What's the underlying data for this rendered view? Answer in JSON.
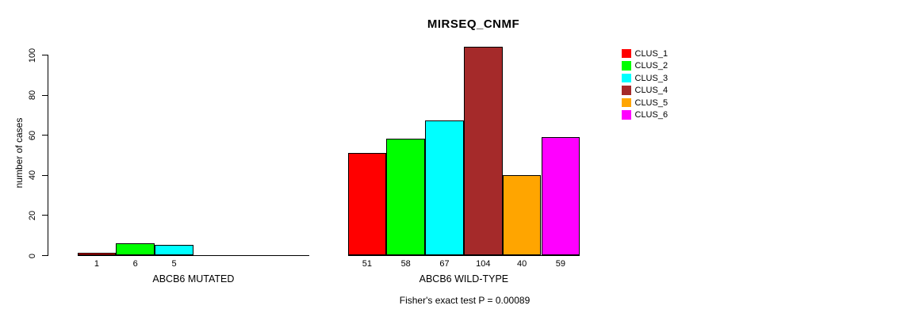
{
  "chart_data": {
    "type": "bar",
    "title": "MIRSEQ_CNMF",
    "ylabel": "number of cases",
    "xlabel": "",
    "ylim": [
      0,
      100
    ],
    "yticks": [
      0,
      20,
      40,
      60,
      80,
      100
    ],
    "grid": false,
    "legend_position": "right",
    "categories": [
      "CLUS_1",
      "CLUS_2",
      "CLUS_3",
      "CLUS_4",
      "CLUS_5",
      "CLUS_6"
    ],
    "colors": [
      "#FF0000",
      "#00FF00",
      "#00FFFF",
      "#A52A2A",
      "#FFA500",
      "#FF00FF"
    ],
    "groups": [
      {
        "label": "ABCB6 MUTATED",
        "values": [
          1,
          6,
          5,
          0,
          0,
          0
        ]
      },
      {
        "label": "ABCB6 WILD-TYPE",
        "values": [
          51,
          58,
          67,
          104,
          40,
          59
        ]
      }
    ],
    "annotation": "Fisher's exact test P = 0.00089"
  }
}
